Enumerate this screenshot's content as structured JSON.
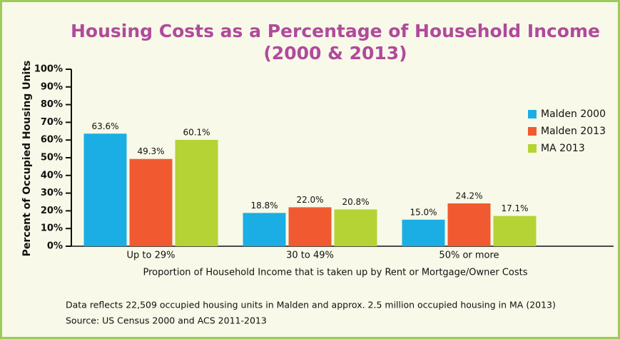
{
  "chart_data": {
    "type": "bar",
    "title": "Housing Costs as a Percentage of Household Income",
    "subtitle": "(2000 & 2013)",
    "y_label": "Percent of Occupied Housing Units",
    "x_label": "Proportion of Household Income that is taken up by Rent or Mortgage/Owner Costs",
    "categories": [
      "Up to 29%",
      "30 to 49%",
      "50% or more"
    ],
    "series": [
      {
        "name": "Malden 2000",
        "color": "#1aaee5",
        "values": [
          63.6,
          18.8,
          15.0
        ],
        "value_labels": [
          "63.6%",
          "18.8%",
          "15.0%"
        ]
      },
      {
        "name": "Malden 2013",
        "color": "#f15a30",
        "values": [
          49.3,
          22.0,
          24.2
        ],
        "value_labels": [
          "49.3%",
          "22.0%",
          "24.2%"
        ]
      },
      {
        "name": "MA 2013",
        "color": "#b5d334",
        "values": [
          60.1,
          20.8,
          17.1
        ],
        "value_labels": [
          "60.1%",
          "20.8%",
          "17.1%"
        ]
      }
    ],
    "ylim": [
      0,
      100
    ],
    "yticks": [
      {
        "value": 0,
        "label": "0%"
      },
      {
        "value": 10,
        "label": "10%"
      },
      {
        "value": 20,
        "label": "20%"
      },
      {
        "value": 30,
        "label": "30%"
      },
      {
        "value": 40,
        "label": "40%"
      },
      {
        "value": 50,
        "label": "50%"
      },
      {
        "value": 60,
        "label": "60%"
      },
      {
        "value": 70,
        "label": "70%"
      },
      {
        "value": 80,
        "label": "80%"
      },
      {
        "value": 90,
        "label": "90%"
      },
      {
        "value": 100,
        "label": "100%"
      }
    ],
    "legend": "right",
    "notes": [
      "Data reflects 22,509 occupied housing units in Malden and approx. 2.5 million occupied housing in MA (2013)",
      "Source: US Census 2000 and ACS 2011-2013"
    ]
  }
}
